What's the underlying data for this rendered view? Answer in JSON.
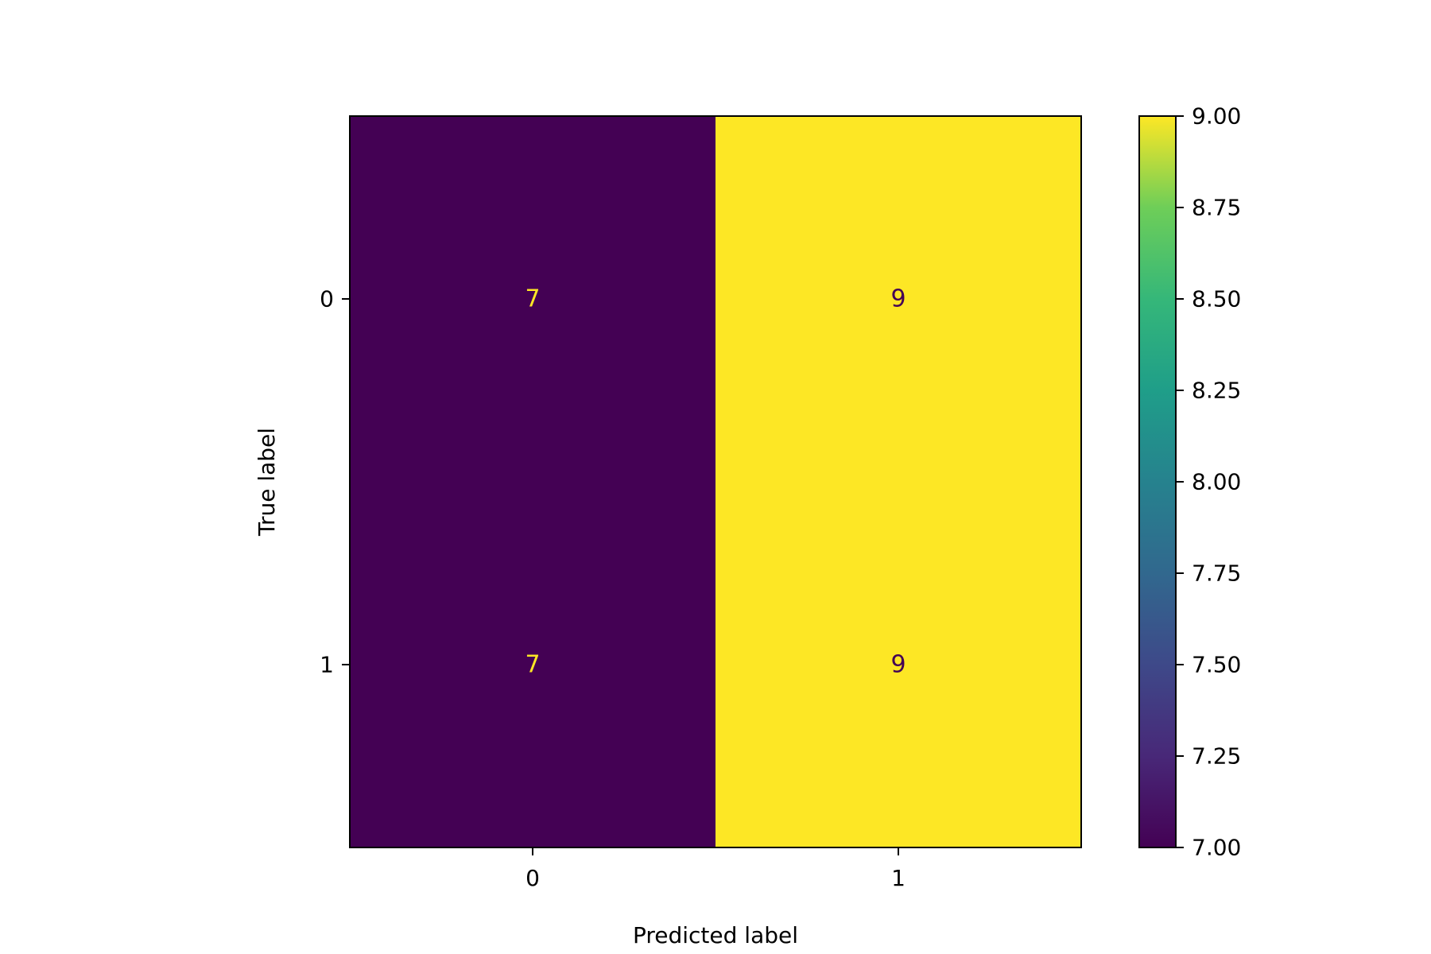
{
  "chart_data": {
    "type": "heatmap",
    "title": "",
    "xlabel": "Predicted label",
    "ylabel": "True label",
    "x_categories": [
      "0",
      "1"
    ],
    "y_categories": [
      "0",
      "1"
    ],
    "matrix": [
      [
        7,
        9
      ],
      [
        7,
        9
      ]
    ],
    "cell_labels": [
      [
        "7",
        "9"
      ],
      [
        "7",
        "9"
      ]
    ],
    "colormap": "viridis",
    "colorbar": {
      "min": 7.0,
      "max": 9.0,
      "ticks": [
        7.0,
        7.25,
        7.5,
        7.75,
        8.0,
        8.25,
        8.5,
        8.75,
        9.0
      ],
      "tick_labels": [
        "7.00",
        "7.25",
        "7.50",
        "7.75",
        "8.00",
        "8.25",
        "8.50",
        "8.75",
        "9.00"
      ]
    },
    "grid": false,
    "legend": "none"
  },
  "colors": {
    "low_cell": "#440154",
    "high_cell": "#fde725",
    "text_on_low": "#fde725",
    "text_on_high": "#440154"
  }
}
